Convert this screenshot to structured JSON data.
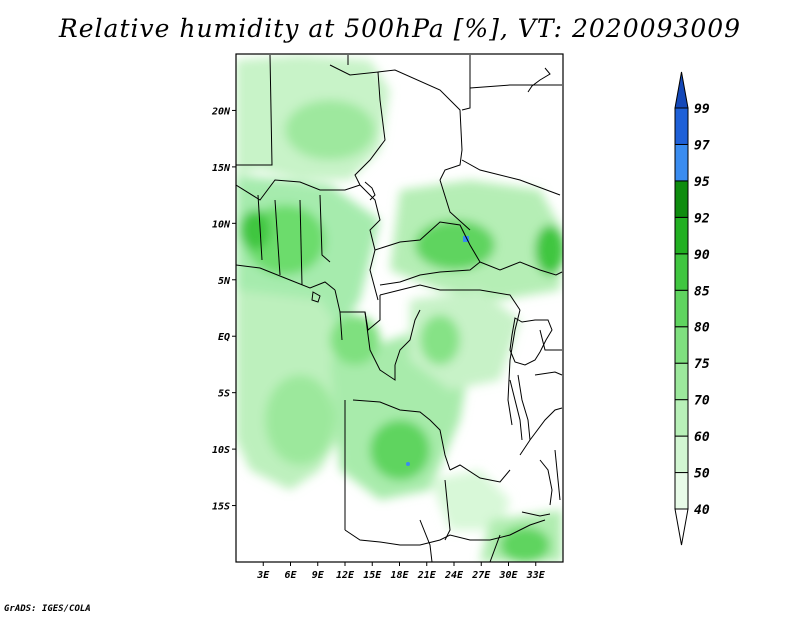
{
  "title": "Relative humidity at 500hPa [%], VT: 2020093009",
  "credit": "GrADS: IGES/COLA",
  "map": {
    "lon_range": [
      0,
      36
    ],
    "lat_range": [
      -20,
      25
    ],
    "lat_ticks": [
      {
        "value": 20,
        "label": "20N"
      },
      {
        "value": 15,
        "label": "15N"
      },
      {
        "value": 10,
        "label": "10N"
      },
      {
        "value": 5,
        "label": "5N"
      },
      {
        "value": 0,
        "label": "EQ"
      },
      {
        "value": -5,
        "label": "5S"
      },
      {
        "value": -10,
        "label": "10S"
      },
      {
        "value": -15,
        "label": "15S"
      }
    ],
    "lon_ticks": [
      {
        "value": 3,
        "label": "3E"
      },
      {
        "value": 6,
        "label": "6E"
      },
      {
        "value": 9,
        "label": "9E"
      },
      {
        "value": 12,
        "label": "12E"
      },
      {
        "value": 15,
        "label": "15E"
      },
      {
        "value": 18,
        "label": "18E"
      },
      {
        "value": 21,
        "label": "21E"
      },
      {
        "value": 24,
        "label": "24E"
      },
      {
        "value": 27,
        "label": "27E"
      },
      {
        "value": 30,
        "label": "30E"
      },
      {
        "value": 33,
        "label": "33E"
      }
    ]
  },
  "colorbar": {
    "levels": [
      "40",
      "50",
      "60",
      "70",
      "75",
      "80",
      "85",
      "90",
      "92",
      "95",
      "97",
      "99"
    ],
    "colors": [
      "#ffffff",
      "#e8fbe8",
      "#d2f6d2",
      "#b8f0b8",
      "#9ce89c",
      "#7fe07f",
      "#5fd45f",
      "#40c640",
      "#22b022",
      "#0e8c0e",
      "#3a8cf0",
      "#1e60d8",
      "#1448b8"
    ]
  }
}
